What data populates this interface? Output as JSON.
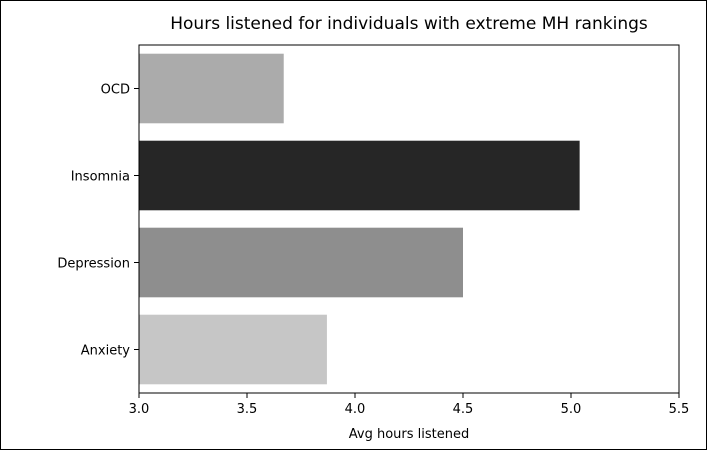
{
  "chart_data": {
    "type": "bar",
    "orientation": "horizontal",
    "title": "Hours listened for individuals with extreme MH rankings",
    "xlabel": "Avg hours listened",
    "ylabel": "",
    "xlim": [
      3.0,
      5.5
    ],
    "xticks": [
      "3.0",
      "3.5",
      "4.0",
      "4.5",
      "5.0",
      "5.5"
    ],
    "grid": false,
    "categories": [
      "OCD",
      "Insomnia",
      "Depression",
      "Anxiety"
    ],
    "values": [
      3.67,
      5.04,
      4.5,
      3.87
    ],
    "colors": [
      "#ababab",
      "#262626",
      "#8e8e8e",
      "#c6c6c6"
    ]
  }
}
